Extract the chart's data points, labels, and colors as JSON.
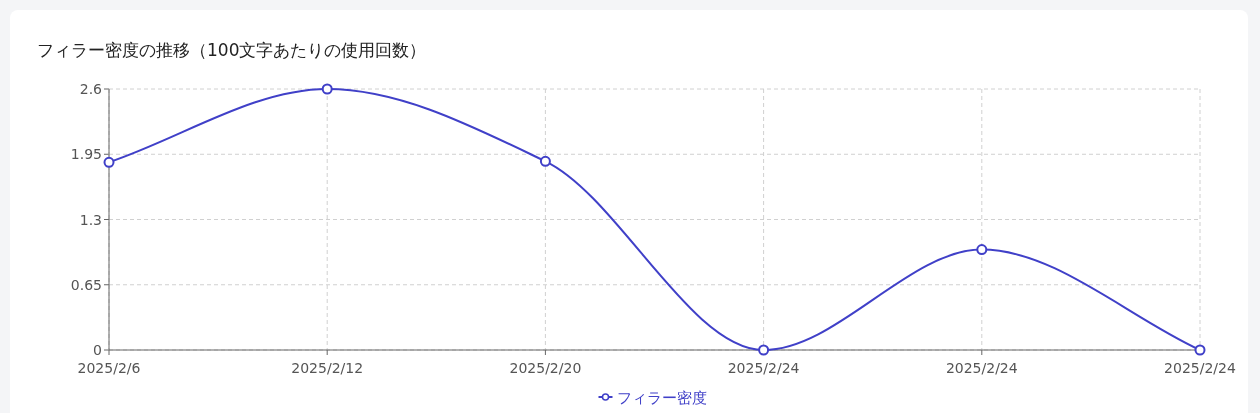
{
  "chart_data": {
    "type": "line",
    "title": "フィラー密度の推移（100文字あたりの使用回数）",
    "categories": [
      "2025/2/6",
      "2025/2/12",
      "2025/2/20",
      "2025/2/24",
      "2025/2/24",
      "2025/2/24"
    ],
    "series": [
      {
        "name": "フィラー密度",
        "color": "#4040c8",
        "values": [
          1.87,
          2.6,
          1.88,
          0,
          1.0,
          0
        ]
      }
    ],
    "ylim": [
      0,
      2.6
    ],
    "yticks": [
      0,
      0.65,
      1.3,
      1.95,
      2.6
    ],
    "grid": true,
    "legend": "bottom",
    "marker": "circle",
    "line_style": "solid"
  }
}
